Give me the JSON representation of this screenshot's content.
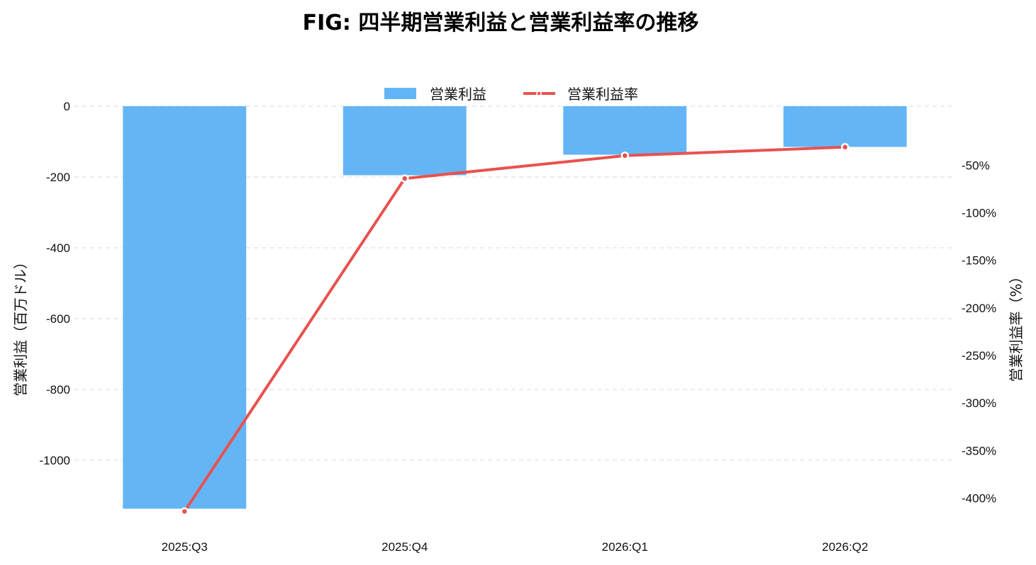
{
  "chart_data": {
    "type": "bar",
    "title": "FIG: 四半期営業利益と営業利益率の推移",
    "categories": [
      "2025:Q3",
      "2025:Q4",
      "2026:Q1",
      "2026:Q2"
    ],
    "series": [
      {
        "name": "営業利益",
        "type": "bar",
        "axis": "left",
        "color": "#64b5f6",
        "values": [
          -1137,
          -195,
          -137,
          -115
        ]
      },
      {
        "name": "営業利益率",
        "type": "line",
        "axis": "right",
        "color": "#e8524f",
        "values": [
          -414,
          -64,
          -40,
          -31
        ]
      }
    ],
    "ylabel": "営業利益（百万ドル）",
    "y2label": "営業利益率（%）",
    "ylim": [
      -1150,
      0
    ],
    "y2lim": [
      -416,
      12
    ],
    "yticks": [
      0,
      -200,
      -400,
      -600,
      -800,
      -1000
    ],
    "yticklabels": [
      "0",
      "-200",
      "-400",
      "-600",
      "-800",
      "-1000"
    ],
    "y2ticks": [
      -50,
      -100,
      -150,
      -200,
      -250,
      -300,
      -350,
      -400
    ],
    "y2ticklabels": [
      "-50%",
      "-100%",
      "-150%",
      "-200%",
      "-250%",
      "-300%",
      "-350%",
      "-400%"
    ],
    "grid": true,
    "legend_position": "top-center"
  }
}
